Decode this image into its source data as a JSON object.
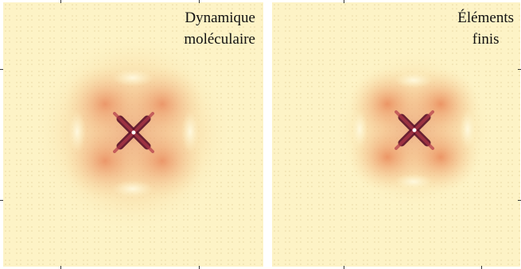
{
  "panels": [
    {
      "caption_lines": [
        "Dynamique",
        "moléculaire"
      ]
    },
    {
      "caption_lines": [
        "Éléments",
        "finis"
      ]
    }
  ],
  "colors": {
    "background": "#fdf3c6",
    "mid": "#f2b77a",
    "core": "#5a1028"
  }
}
